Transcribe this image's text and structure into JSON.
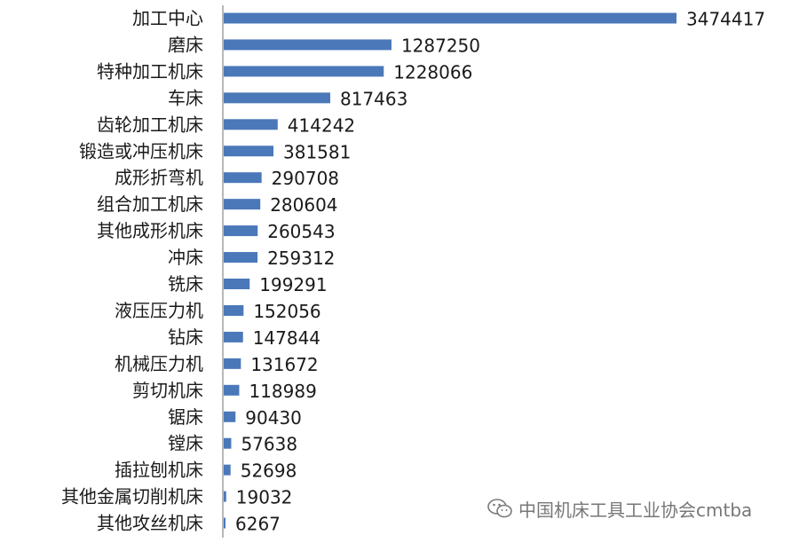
{
  "chart_data": {
    "type": "bar",
    "orientation": "horizontal",
    "categories": [
      "加工中心",
      "磨床",
      "特种加工机床",
      "车床",
      "齿轮加工机床",
      "锻造或冲压机床",
      "成形折弯机",
      "组合加工机床",
      "其他成形机床",
      "冲床",
      "铣床",
      "液压压力机",
      "钻床",
      "机械压力机",
      "剪切机床",
      "锯床",
      "镗床",
      "插拉刨机床",
      "其他金属切削机床",
      "其他攻丝机床"
    ],
    "values": [
      3474417,
      1287250,
      1228066,
      817463,
      414242,
      381581,
      290708,
      280604,
      260543,
      259312,
      199291,
      152056,
      147844,
      131672,
      118989,
      90430,
      57638,
      52698,
      19032,
      6267
    ],
    "title": "",
    "xlabel": "",
    "ylabel": "",
    "grid": false,
    "data_labels": true,
    "bar_color": "#4A78B8"
  },
  "watermark": {
    "icon": "wechat-icon",
    "text": "中国机床工具工业协会cmtba"
  }
}
